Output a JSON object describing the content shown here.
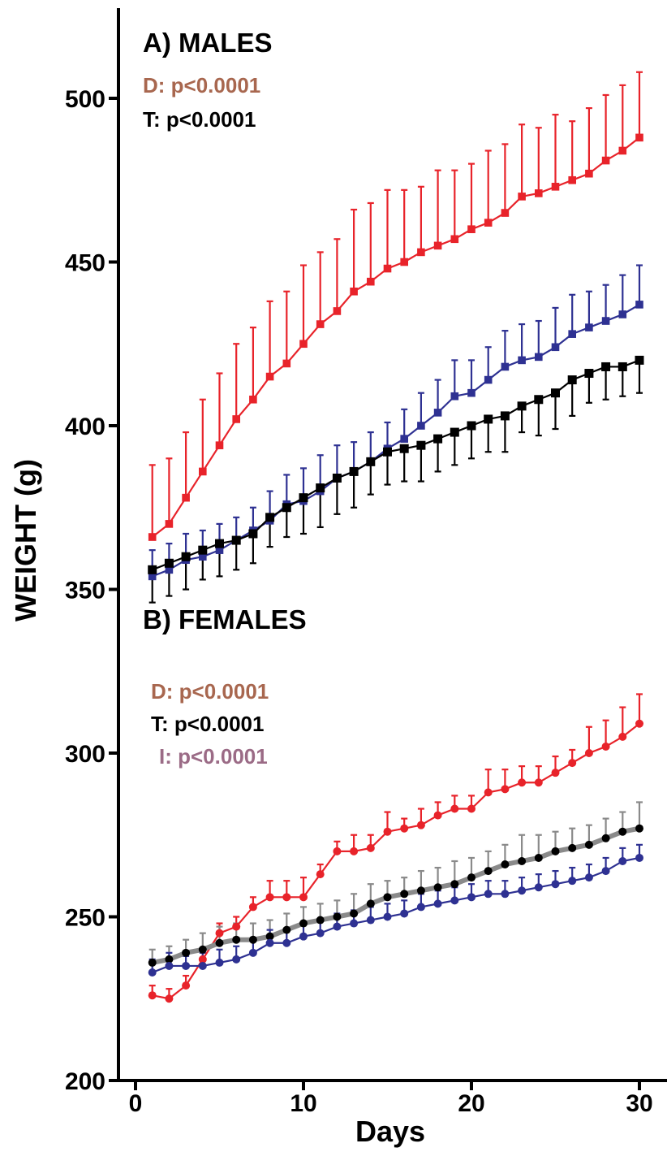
{
  "chart_data": {
    "type": "line",
    "ylabel": "WEIGHT (g)",
    "xlabel": "Days",
    "xlim": [
      -0.5,
      31.5
    ],
    "ylim": [
      200,
      520
    ],
    "x_ticks": [
      0,
      10,
      20,
      30
    ],
    "y_ticks": [
      200,
      250,
      300,
      350,
      400,
      450,
      500
    ],
    "x_tick_labels": [
      "0",
      "10",
      "20",
      "30"
    ],
    "y_tick_labels": [
      "200",
      "250",
      "300",
      "350",
      "400",
      "450",
      "500"
    ],
    "x": [
      1,
      2,
      3,
      4,
      5,
      6,
      7,
      8,
      9,
      10,
      11,
      12,
      13,
      14,
      15,
      16,
      17,
      18,
      19,
      20,
      21,
      22,
      23,
      24,
      25,
      26,
      27,
      28,
      29,
      30
    ],
    "annotations": [
      {
        "id": "males_title",
        "text": "A) MALES",
        "color": "#000000"
      },
      {
        "id": "males_d",
        "text": "D: p<0.0001",
        "color": "#a8674f"
      },
      {
        "id": "males_t",
        "text": "T: p<0.0001",
        "color": "#000000"
      },
      {
        "id": "females_title",
        "text": "B) FEMALES",
        "color": "#000000"
      },
      {
        "id": "females_d",
        "text": "D: p<0.0001",
        "color": "#a8674f"
      },
      {
        "id": "females_t",
        "text": "T: p<0.0001",
        "color": "#000000"
      },
      {
        "id": "females_i",
        "text": "I: p<0.0001",
        "color": "#9b6b86"
      }
    ],
    "series": [
      {
        "color": "#e8232a",
        "marker": "square",
        "error_color": "#e8232a",
        "values": [
          366,
          370,
          378,
          386,
          394,
          402,
          408,
          415,
          419,
          425,
          431,
          435,
          441,
          444,
          448,
          450,
          453,
          455,
          457,
          460,
          462,
          465,
          470,
          471,
          473,
          475,
          477,
          481,
          484,
          488
        ],
        "errors": [
          22,
          20,
          20,
          22,
          22,
          23,
          22,
          23,
          22,
          24,
          22,
          22,
          25,
          24,
          24,
          22,
          20,
          23,
          21,
          20,
          22,
          21,
          22,
          20,
          22,
          18,
          20,
          20,
          20,
          20
        ]
      },
      {
        "color": "#2e3192",
        "marker": "square",
        "error_color": "#2e3192",
        "values": [
          354,
          356,
          359,
          360,
          362,
          365,
          368,
          371,
          376,
          377,
          380,
          384,
          386,
          389,
          393,
          396,
          400,
          404,
          409,
          410,
          414,
          418,
          420,
          421,
          424,
          428,
          430,
          432,
          434,
          437
        ],
        "errors": [
          8,
          8,
          8,
          8,
          8,
          7,
          7,
          9,
          9,
          10,
          11,
          10,
          9,
          9,
          8,
          9,
          10,
          10,
          11,
          10,
          10,
          11,
          11,
          11,
          12,
          12,
          11,
          11,
          12,
          12
        ]
      },
      {
        "color": "#000000",
        "marker": "square",
        "error_color": "#000000",
        "values": [
          356,
          358,
          360,
          362,
          364,
          365,
          367,
          372,
          375,
          378,
          381,
          384,
          386,
          389,
          392,
          393,
          394,
          396,
          398,
          400,
          402,
          403,
          406,
          408,
          410,
          414,
          416,
          418,
          418,
          420
        ],
        "errors": [
          10,
          10,
          10,
          9,
          10,
          9,
          9,
          9,
          9,
          11,
          12,
          11,
          11,
          10,
          10,
          10,
          11,
          10,
          10,
          10,
          10,
          11,
          8,
          11,
          11,
          11,
          9,
          10,
          9,
          10
        ]
      },
      {
        "color": "#e8232a",
        "marker": "circle",
        "error_color": "#e8232a",
        "values": [
          226,
          225,
          229,
          237,
          245,
          247,
          253,
          256,
          256,
          256,
          263,
          270,
          270,
          271,
          276,
          277,
          278,
          281,
          283,
          283,
          288,
          289,
          291,
          291,
          294,
          297,
          300,
          302,
          305,
          309
        ],
        "errors": [
          3,
          3,
          3,
          3,
          3,
          3,
          3,
          5,
          5,
          6,
          3,
          3,
          5,
          4,
          6,
          3,
          5,
          4,
          4,
          4,
          7,
          6,
          5,
          5,
          5,
          4,
          8,
          8,
          9,
          9
        ]
      },
      {
        "color": "#000000",
        "line_color": "#8a8a8a",
        "marker": "circle",
        "error_color": "#8a8a8a",
        "values": [
          236,
          237,
          239,
          240,
          242,
          243,
          243,
          244,
          246,
          248,
          249,
          250,
          251,
          254,
          256,
          257,
          258,
          259,
          260,
          262,
          264,
          266,
          267,
          268,
          270,
          271,
          272,
          274,
          276,
          277
        ],
        "errors": [
          4,
          4,
          4,
          5,
          5,
          5,
          5,
          5,
          5,
          5,
          5,
          5,
          6,
          6,
          5,
          5,
          6,
          6,
          7,
          6,
          6,
          6,
          8,
          7,
          6,
          6,
          6,
          6,
          6,
          8
        ]
      },
      {
        "color": "#2e3192",
        "marker": "circle",
        "error_color": "#2e3192",
        "values": [
          233,
          235,
          235,
          235,
          236,
          237,
          239,
          242,
          242,
          244,
          245,
          247,
          248,
          249,
          250,
          251,
          253,
          254,
          255,
          256,
          257,
          257,
          258,
          259,
          260,
          261,
          262,
          264,
          267,
          268
        ],
        "errors": [
          4,
          4,
          3,
          4,
          4,
          4,
          4,
          4,
          4,
          4,
          4,
          4,
          4,
          4,
          4,
          4,
          4,
          4,
          4,
          4,
          4,
          4,
          4,
          4,
          4,
          4,
          4,
          4,
          4,
          4
        ]
      }
    ]
  }
}
